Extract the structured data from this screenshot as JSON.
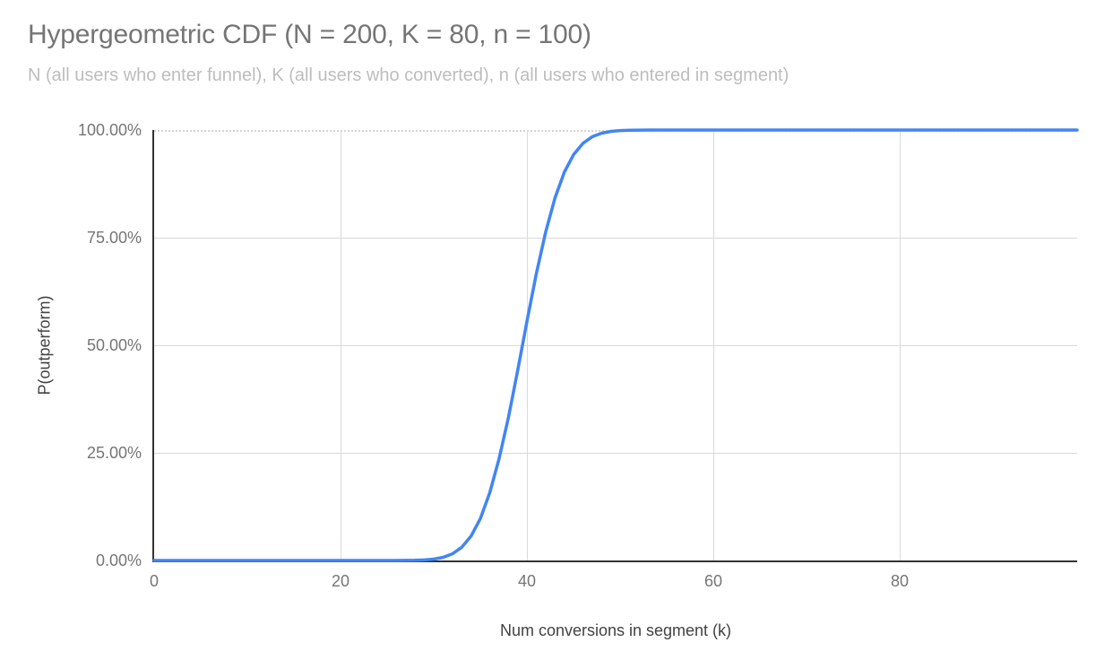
{
  "chart": {
    "title": "Hypergeometric CDF (N = 200, K = 80, n = 100)",
    "subtitle": "N (all users who enter funnel), K (all users who converted), n (all users who entered in segment)"
  },
  "axes": {
    "x": {
      "title": "Num conversions in segment (k)",
      "ticks": [
        "0",
        "20",
        "40",
        "60",
        "80"
      ]
    },
    "y": {
      "title": "P(outperform)",
      "ticks": [
        "100.00%",
        "75.00%",
        "50.00%",
        "25.00%",
        "0.00%"
      ]
    }
  },
  "colors": {
    "line": "#4285f4",
    "grid": "#d9d9d9",
    "axis": "#333333",
    "title_text": "#757575",
    "subtitle_text": "#bdbdbd",
    "tick_text": "#757575",
    "axis_title_text": "#424242",
    "background": "#ffffff"
  },
  "chart_data": {
    "type": "line",
    "title": "Hypergeometric CDF (N = 200, K = 80, n = 100)",
    "subtitle": "N (all users who enter funnel), K (all users who converted), n (all users who entered in segment)",
    "xlabel": "Num conversions in segment (k)",
    "ylabel": "P(outperform)",
    "xlim": [
      0,
      99
    ],
    "ylim": [
      0,
      1
    ],
    "x_tick_values": [
      0,
      20,
      40,
      60,
      80
    ],
    "y_tick_labels": [
      "0.00%",
      "25.00%",
      "50.00%",
      "75.00%",
      "100.00%"
    ],
    "grid": true,
    "legend_position": "none",
    "series": [
      {
        "name": "P(outperform)",
        "color": "#4285f4",
        "x_start": 0,
        "x_step": 1,
        "values": [
          0,
          0,
          0,
          0,
          0,
          0,
          0,
          0,
          0,
          0,
          0,
          0,
          0,
          0,
          0,
          0,
          0,
          0,
          0,
          0,
          0,
          0,
          0,
          0,
          0,
          0,
          0.0001,
          0.0002,
          0.0005,
          0.0013,
          0.0031,
          0.0072,
          0.0154,
          0.0307,
          0.0566,
          0.0975,
          0.1572,
          0.2363,
          0.3326,
          0.4427,
          0.5573,
          0.6674,
          0.7637,
          0.8428,
          0.9025,
          0.9434,
          0.9693,
          0.9846,
          0.9928,
          0.9969,
          0.9987,
          0.9995,
          0.9998,
          0.9999,
          1,
          1,
          1,
          1,
          1,
          1,
          1,
          1,
          1,
          1,
          1,
          1,
          1,
          1,
          1,
          1,
          1,
          1,
          1,
          1,
          1,
          1,
          1,
          1,
          1,
          1,
          1,
          1,
          1,
          1,
          1,
          1,
          1,
          1,
          1,
          1,
          1,
          1,
          1,
          1,
          1,
          1,
          1,
          1,
          1,
          1
        ]
      }
    ]
  }
}
